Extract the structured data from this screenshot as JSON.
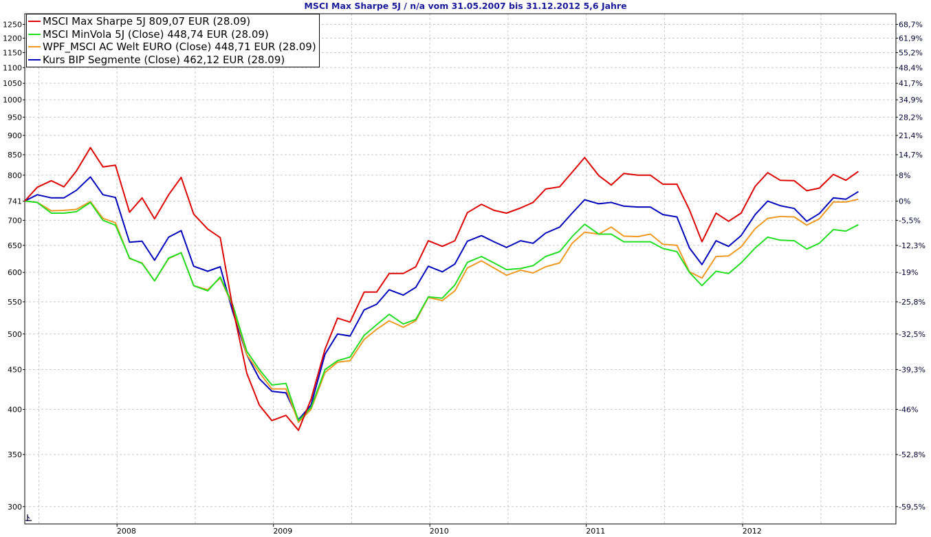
{
  "chart_data": {
    "type": "line",
    "title": "MSCI Max Sharpe 5J / n/a vom 31.05.2007 bis 31.12.2012 5,6 Jahre",
    "x_range": [
      2007.41,
      2012.98
    ],
    "y_scale": "log",
    "ylim_left": [
      285,
      1290
    ],
    "left_ticks": [
      300,
      350,
      400,
      450,
      500,
      550,
      600,
      650,
      700,
      741,
      800,
      850,
      900,
      950,
      1000,
      1050,
      1100,
      1150,
      1200,
      1250
    ],
    "right_ticks": [
      {
        "value": 300,
        "label": "-59,5%"
      },
      {
        "value": 350,
        "label": "-52,8%"
      },
      {
        "value": 400,
        "label": "-46%"
      },
      {
        "value": 450,
        "label": "-39,3%"
      },
      {
        "value": 500,
        "label": "-32,5%"
      },
      {
        "value": 550,
        "label": "-25,8%"
      },
      {
        "value": 600,
        "label": "-19%"
      },
      {
        "value": 650,
        "label": "-12,3%"
      },
      {
        "value": 700,
        "label": "-5,5%"
      },
      {
        "value": 741,
        "label": "0%"
      },
      {
        "value": 800,
        "label": "8%"
      },
      {
        "value": 850,
        "label": "14,7%"
      },
      {
        "value": 900,
        "label": "21,4%"
      },
      {
        "value": 950,
        "label": "28,2%"
      },
      {
        "value": 1000,
        "label": "34,9%"
      },
      {
        "value": 1050,
        "label": "41,7%"
      },
      {
        "value": 1100,
        "label": "48,4%"
      },
      {
        "value": 1150,
        "label": "55,2%"
      },
      {
        "value": 1200,
        "label": "61,9%"
      },
      {
        "value": 1250,
        "label": "68,7%"
      }
    ],
    "x_ticks": [
      {
        "value": 2008,
        "label": "2008"
      },
      {
        "value": 2009,
        "label": "2009"
      },
      {
        "value": 2010,
        "label": "2010"
      },
      {
        "value": 2011,
        "label": "2011"
      },
      {
        "value": 2012,
        "label": "2012"
      }
    ],
    "grid": true,
    "legend_position": "top-left",
    "x": [
      2007.41,
      2007.49,
      2007.58,
      2007.66,
      2007.74,
      2007.83,
      2007.91,
      2007.99,
      2008.08,
      2008.16,
      2008.24,
      2008.33,
      2008.41,
      2008.49,
      2008.58,
      2008.66,
      2008.74,
      2008.83,
      2008.91,
      2008.99,
      2009.08,
      2009.16,
      2009.24,
      2009.33,
      2009.41,
      2009.49,
      2009.58,
      2009.66,
      2009.74,
      2009.83,
      2009.91,
      2009.99,
      2010.08,
      2010.16,
      2010.24,
      2010.33,
      2010.41,
      2010.49,
      2010.58,
      2010.66,
      2010.74,
      2010.83,
      2010.91,
      2010.99,
      2011.08,
      2011.16,
      2011.24,
      2011.33,
      2011.41,
      2011.49,
      2011.58,
      2011.66,
      2011.74,
      2011.83,
      2011.91,
      2011.99,
      2012.08,
      2012.16,
      2012.24,
      2012.33,
      2012.41,
      2012.49,
      2012.58,
      2012.66,
      2012.74
    ],
    "series": [
      {
        "name": "MSCI Max Sharpe 5J 809,07 EUR (28.09)",
        "color": "#dd0000",
        "values": [
          741,
          772,
          787,
          773,
          810,
          868,
          820,
          824,
          717,
          748,
          703,
          755,
          795,
          713,
          682,
          665,
          540,
          445,
          405,
          387,
          393,
          376,
          412,
          478,
          524,
          518,
          566,
          566,
          598,
          598,
          610,
          659,
          648,
          659,
          716,
          734,
          721,
          715,
          726,
          738,
          768,
          773,
          807,
          843,
          799,
          777,
          804,
          800,
          800,
          779,
          779,
          722,
          657,
          715,
          698,
          715,
          774,
          806,
          788,
          787,
          764,
          770,
          802,
          788,
          809
        ]
      },
      {
        "name": "MSCI MinVola 5J (Close) 448,74 EUR (28.09)",
        "color": "#22dd22",
        "values": [
          741,
          738,
          715,
          715,
          718,
          738,
          700,
          690,
          626,
          616,
          585,
          626,
          636,
          577,
          568,
          592,
          545,
          475,
          450,
          430,
          432,
          387,
          402,
          450,
          462,
          467,
          498,
          514,
          530,
          515,
          522,
          558,
          556,
          578,
          618,
          629,
          617,
          605,
          607,
          612,
          629,
          638,
          667,
          692,
          672,
          672,
          657,
          657,
          657,
          644,
          638,
          600,
          577,
          602,
          598,
          617,
          645,
          666,
          660,
          659,
          643,
          654,
          681,
          678,
          691
        ]
      },
      {
        "name": "WPF_MSCI AC Welt EURO (Close) 448,71 EUR (28.09)",
        "color": "#ee9922",
        "values": [
          741,
          738,
          720,
          721,
          723,
          740,
          704,
          695,
          625,
          617,
          585,
          625,
          636,
          577,
          570,
          590,
          543,
          470,
          446,
          425,
          425,
          385,
          400,
          446,
          460,
          462,
          492,
          507,
          520,
          510,
          520,
          557,
          552,
          568,
          608,
          621,
          608,
          595,
          604,
          599,
          610,
          617,
          654,
          676,
          672,
          686,
          668,
          667,
          672,
          652,
          650,
          601,
          590,
          629,
          630,
          647,
          683,
          704,
          708,
          707,
          690,
          703,
          739,
          739,
          745
        ]
      },
      {
        "name": "Kurs BIP Segmente (Close) 462,12 EUR (28.09)",
        "color": "#0000bb",
        "values": [
          741,
          755,
          748,
          748,
          765,
          796,
          755,
          749,
          656,
          658,
          622,
          666,
          679,
          611,
          602,
          610,
          534,
          470,
          438,
          422,
          420,
          388,
          405,
          471,
          500,
          497,
          537,
          546,
          570,
          561,
          574,
          611,
          601,
          615,
          658,
          669,
          657,
          646,
          659,
          654,
          674,
          686,
          715,
          744,
          735,
          738,
          730,
          728,
          728,
          712,
          707,
          645,
          614,
          659,
          648,
          669,
          712,
          741,
          731,
          725,
          698,
          714,
          748,
          745,
          762
        ]
      }
    ]
  }
}
